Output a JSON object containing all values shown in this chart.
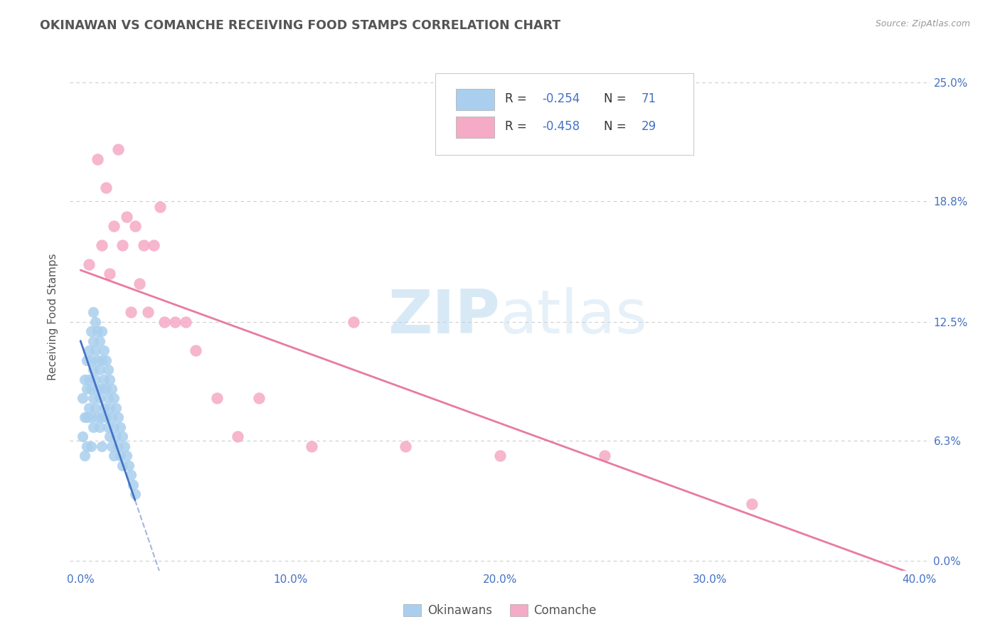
{
  "title": "OKINAWAN VS COMANCHE RECEIVING FOOD STAMPS CORRELATION CHART",
  "source": "Source: ZipAtlas.com",
  "ylabel": "Receiving Food Stamps",
  "xlabel_ticks": [
    "0.0%",
    "10.0%",
    "20.0%",
    "30.0%",
    "40.0%"
  ],
  "xlabel_vals": [
    0.0,
    0.1,
    0.2,
    0.3,
    0.4
  ],
  "ylabel_ticks": [
    "0.0%",
    "6.3%",
    "12.5%",
    "18.8%",
    "25.0%"
  ],
  "ylabel_vals": [
    0.0,
    0.063,
    0.125,
    0.188,
    0.25
  ],
  "xlim": [
    -0.005,
    0.405
  ],
  "ylim": [
    -0.005,
    0.26
  ],
  "watermark_zip": "ZIP",
  "watermark_atlas": "atlas",
  "legend_r1": "-0.254",
  "legend_n1": "71",
  "legend_r2": "-0.458",
  "legend_n2": "29",
  "okinawan_color": "#aacfee",
  "comanche_color": "#f5aac5",
  "okinawan_line_color": "#4472c4",
  "comanche_line_color": "#e87aa0",
  "background_color": "#ffffff",
  "grid_color": "#cccccc",
  "title_color": "#555555",
  "axis_label_color": "#555555",
  "tick_color": "#4472c4",
  "source_color": "#999999",
  "legend_label_color": "#333333",
  "legend_num_color": "#4472c4",
  "okinawan_x": [
    0.001,
    0.001,
    0.002,
    0.002,
    0.002,
    0.003,
    0.003,
    0.003,
    0.003,
    0.004,
    0.004,
    0.004,
    0.005,
    0.005,
    0.005,
    0.005,
    0.005,
    0.006,
    0.006,
    0.006,
    0.006,
    0.006,
    0.007,
    0.007,
    0.007,
    0.007,
    0.008,
    0.008,
    0.008,
    0.008,
    0.009,
    0.009,
    0.009,
    0.009,
    0.01,
    0.01,
    0.01,
    0.01,
    0.01,
    0.011,
    0.011,
    0.011,
    0.012,
    0.012,
    0.012,
    0.013,
    0.013,
    0.013,
    0.014,
    0.014,
    0.014,
    0.015,
    0.015,
    0.015,
    0.016,
    0.016,
    0.016,
    0.017,
    0.017,
    0.018,
    0.018,
    0.019,
    0.019,
    0.02,
    0.02,
    0.021,
    0.022,
    0.023,
    0.024,
    0.025,
    0.026
  ],
  "okinawan_y": [
    0.085,
    0.065,
    0.095,
    0.075,
    0.055,
    0.105,
    0.09,
    0.075,
    0.06,
    0.11,
    0.095,
    0.08,
    0.12,
    0.105,
    0.09,
    0.075,
    0.06,
    0.13,
    0.115,
    0.1,
    0.085,
    0.07,
    0.125,
    0.11,
    0.095,
    0.08,
    0.12,
    0.105,
    0.09,
    0.075,
    0.115,
    0.1,
    0.085,
    0.07,
    0.12,
    0.105,
    0.09,
    0.075,
    0.06,
    0.11,
    0.095,
    0.08,
    0.105,
    0.09,
    0.075,
    0.1,
    0.085,
    0.07,
    0.095,
    0.08,
    0.065,
    0.09,
    0.075,
    0.06,
    0.085,
    0.07,
    0.055,
    0.08,
    0.065,
    0.075,
    0.06,
    0.07,
    0.055,
    0.065,
    0.05,
    0.06,
    0.055,
    0.05,
    0.045,
    0.04,
    0.035
  ],
  "comanche_x": [
    0.004,
    0.008,
    0.01,
    0.012,
    0.014,
    0.016,
    0.018,
    0.02,
    0.022,
    0.024,
    0.026,
    0.028,
    0.03,
    0.032,
    0.035,
    0.038,
    0.04,
    0.045,
    0.05,
    0.055,
    0.065,
    0.075,
    0.085,
    0.11,
    0.13,
    0.155,
    0.2,
    0.25,
    0.32
  ],
  "comanche_y": [
    0.155,
    0.21,
    0.165,
    0.195,
    0.15,
    0.175,
    0.215,
    0.165,
    0.18,
    0.13,
    0.175,
    0.145,
    0.165,
    0.13,
    0.165,
    0.185,
    0.125,
    0.125,
    0.125,
    0.11,
    0.085,
    0.065,
    0.085,
    0.06,
    0.125,
    0.06,
    0.055,
    0.055,
    0.03
  ],
  "ok_line_x": [
    0.0,
    0.026
  ],
  "ok_line_slope": -3.2,
  "ok_line_intercept": 0.115,
  "com_line_x_start": 0.0,
  "com_line_x_end": 0.405,
  "com_line_y_start": 0.152,
  "com_line_y_end": -0.01
}
